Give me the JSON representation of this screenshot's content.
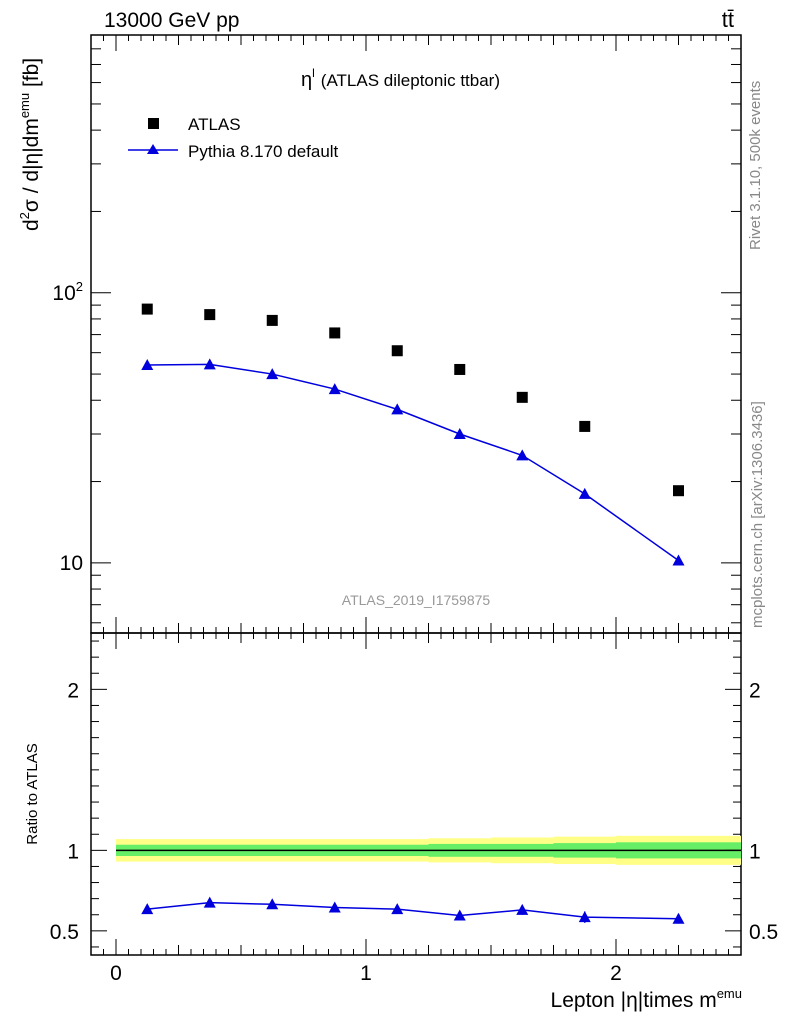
{
  "header": {
    "energy_label": "13000 GeV pp",
    "process_label": "tt̄",
    "plot_title_symbol": "η",
    "plot_title_sup": "l",
    "plot_title_text": "(ATLAS dileptonic ttbar)",
    "analysis_id": "ATLAS_2019_I1759875",
    "side_label_top": "Rivet 3.1.10,  500k events",
    "side_label_bottom": "mcplots.cern.ch [arXiv:1306.3436]"
  },
  "colors": {
    "data": "#000000",
    "mc": "#0000dd",
    "band_inner": "#66ee66",
    "band_outer": "#ffff88"
  },
  "chart_data": [
    {
      "type": "scatter",
      "yscale": "log",
      "ylabel_main": "d",
      "ylabel_sup1": "2",
      "ylabel_rest": "σ / d|η|dm",
      "ylabel_sup2": "emu",
      "ylabel_unit": " [fb]",
      "xlim": [
        -0.1,
        2.5
      ],
      "ylim": [
        5.5,
        900
      ],
      "yticks": [
        {
          "value": 10,
          "label": "10"
        },
        {
          "value": 100,
          "label": "10",
          "sup": "2"
        }
      ],
      "legend_position": "top-left",
      "series": [
        {
          "name": "ATLAS",
          "marker": "square",
          "x": [
            0.125,
            0.375,
            0.625,
            0.875,
            1.125,
            1.375,
            1.625,
            1.875,
            2.25
          ],
          "y": [
            87,
            83,
            79,
            71,
            61,
            52,
            41,
            32,
            18.5
          ]
        },
        {
          "name": "Pythia 8.170 default",
          "marker": "triangle",
          "x": [
            0.125,
            0.375,
            0.625,
            0.875,
            1.125,
            1.375,
            1.625,
            1.875,
            2.25
          ],
          "y": [
            54,
            54.3,
            50,
            44,
            37,
            30,
            25,
            18,
            10.2
          ]
        }
      ]
    },
    {
      "type": "line",
      "ylabel": "Ratio to ATLAS",
      "xlabel_main": "Lepton |η|times m",
      "xlabel_sup": "emu",
      "xlim": [
        -0.1,
        2.5
      ],
      "ylim": [
        0.35,
        2.35
      ],
      "xticks": [
        0,
        1,
        2
      ],
      "yticks": [
        0.5,
        1,
        2
      ],
      "reference_line": 1,
      "uncertainty_band": {
        "x_edges": [
          0,
          0.25,
          0.5,
          0.75,
          1.0,
          1.25,
          1.5,
          1.75,
          2.0,
          2.5
        ],
        "inner": [
          0.035,
          0.035,
          0.035,
          0.035,
          0.035,
          0.04,
          0.04,
          0.045,
          0.05
        ],
        "outer": [
          0.07,
          0.07,
          0.07,
          0.07,
          0.07,
          0.075,
          0.08,
          0.085,
          0.09
        ]
      },
      "series": [
        {
          "name": "Pythia 8.170 default",
          "x": [
            0.125,
            0.375,
            0.625,
            0.875,
            1.125,
            1.375,
            1.625,
            1.875,
            2.25
          ],
          "y": [
            0.635,
            0.675,
            0.665,
            0.645,
            0.635,
            0.595,
            0.63,
            0.585,
            0.575
          ],
          "err": [
            0.02,
            0.02,
            0.02,
            0.02,
            0.022,
            0.025,
            0.03,
            0.035,
            0.03
          ]
        }
      ]
    }
  ]
}
